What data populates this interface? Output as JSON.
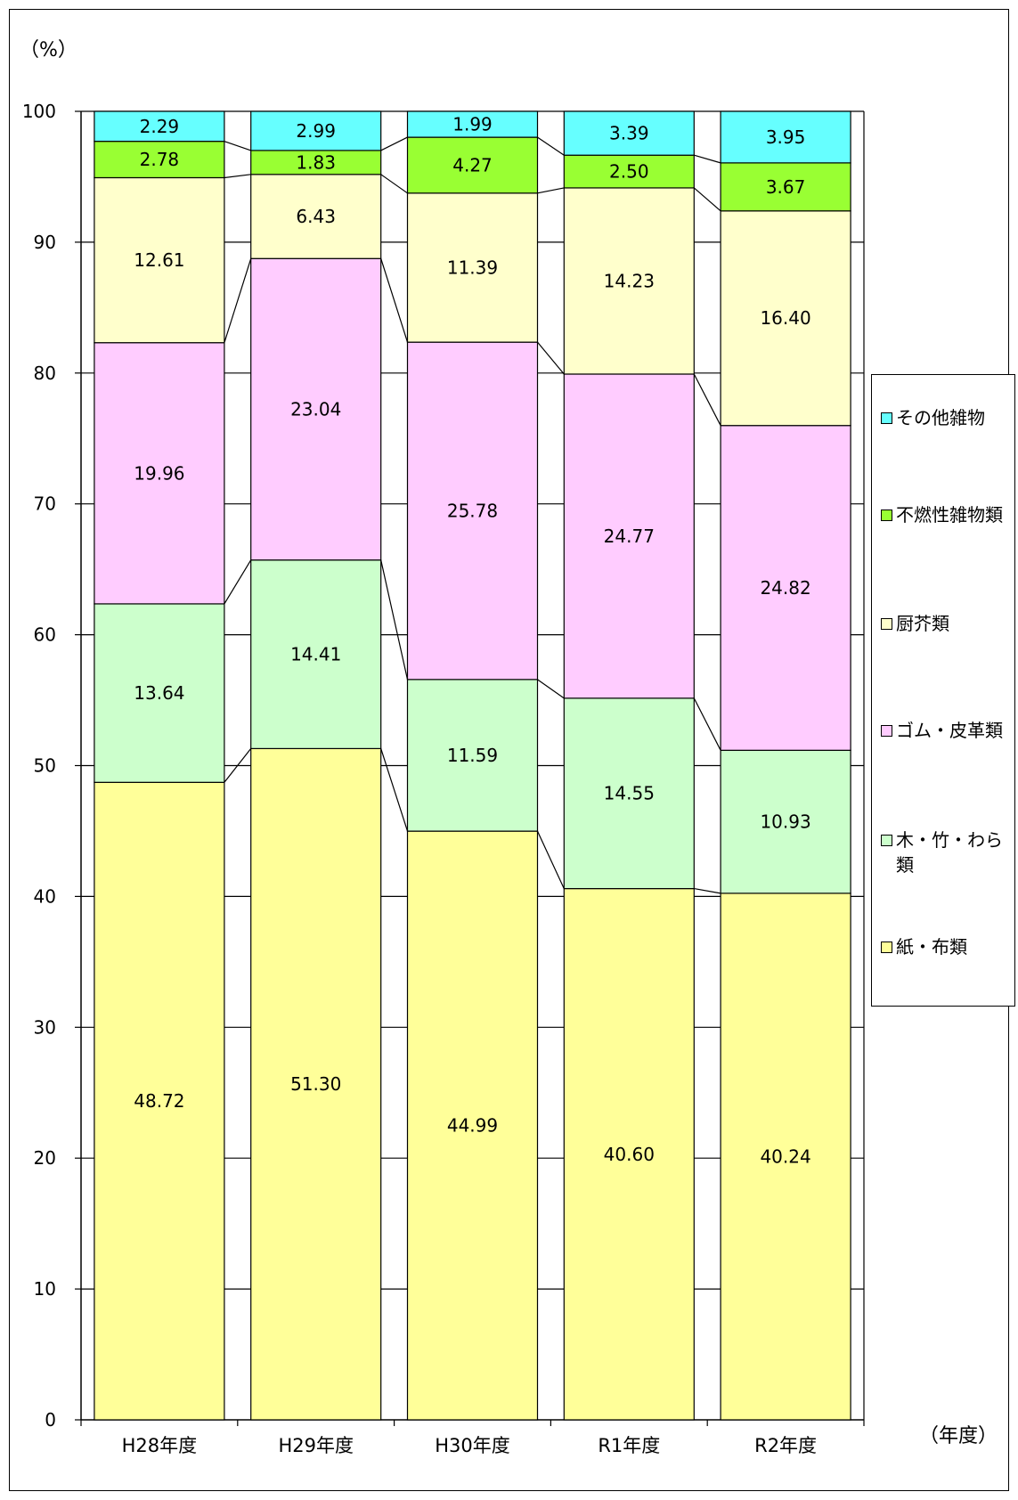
{
  "chart_data": {
    "type": "bar",
    "stacked": true,
    "y_unit_label": "（%）",
    "x_unit_label": "（年度）",
    "ylim": [
      0,
      100
    ],
    "yticks": [
      0,
      10,
      20,
      30,
      40,
      50,
      60,
      70,
      80,
      90,
      100
    ],
    "categories": [
      "H28年度",
      "H29年度",
      "H30年度",
      "R1年度",
      "R2年度"
    ],
    "series": [
      {
        "name": "紙・布類",
        "color": "#FFFF99",
        "values": [
          48.72,
          51.3,
          44.99,
          40.6,
          40.24
        ]
      },
      {
        "name": "木・竹・わら類",
        "color": "#CCFFCC",
        "values": [
          13.64,
          14.41,
          11.59,
          14.55,
          10.93
        ]
      },
      {
        "name": "ゴム・皮革類",
        "color": "#FFCCFF",
        "values": [
          19.96,
          23.04,
          25.78,
          24.77,
          24.82
        ]
      },
      {
        "name": "厨芥類",
        "color": "#FFFFCC",
        "values": [
          12.61,
          6.43,
          11.39,
          14.23,
          16.4
        ]
      },
      {
        "name": "不燃性雑物類",
        "color": "#99FF33",
        "values": [
          2.78,
          1.83,
          4.27,
          2.5,
          3.67
        ]
      },
      {
        "name": "その他雑物",
        "color": "#66FFFF",
        "values": [
          2.29,
          2.99,
          1.99,
          3.39,
          3.95
        ]
      }
    ],
    "value_labels": [
      [
        "48.72",
        "13.64",
        "19.96",
        "12.61",
        "2.78",
        "2.29"
      ],
      [
        "51.30",
        "14.41",
        "23.04",
        "6.43",
        "1.83",
        "2.99"
      ],
      [
        "44.99",
        "11.59",
        "25.78",
        "11.39",
        "4.27",
        "1.99"
      ],
      [
        "40.60",
        "14.55",
        "24.77",
        "14.23",
        "2.50",
        "3.39"
      ],
      [
        "40.24",
        "10.93",
        "24.82",
        "16.40",
        "3.67",
        "3.95"
      ]
    ],
    "legend_order": [
      "その他雑物",
      "不燃性雑物類",
      "厨芥類",
      "ゴム・皮革類",
      "木・竹・わら類",
      "紙・布類"
    ],
    "legend_position": "right",
    "grid": true
  }
}
